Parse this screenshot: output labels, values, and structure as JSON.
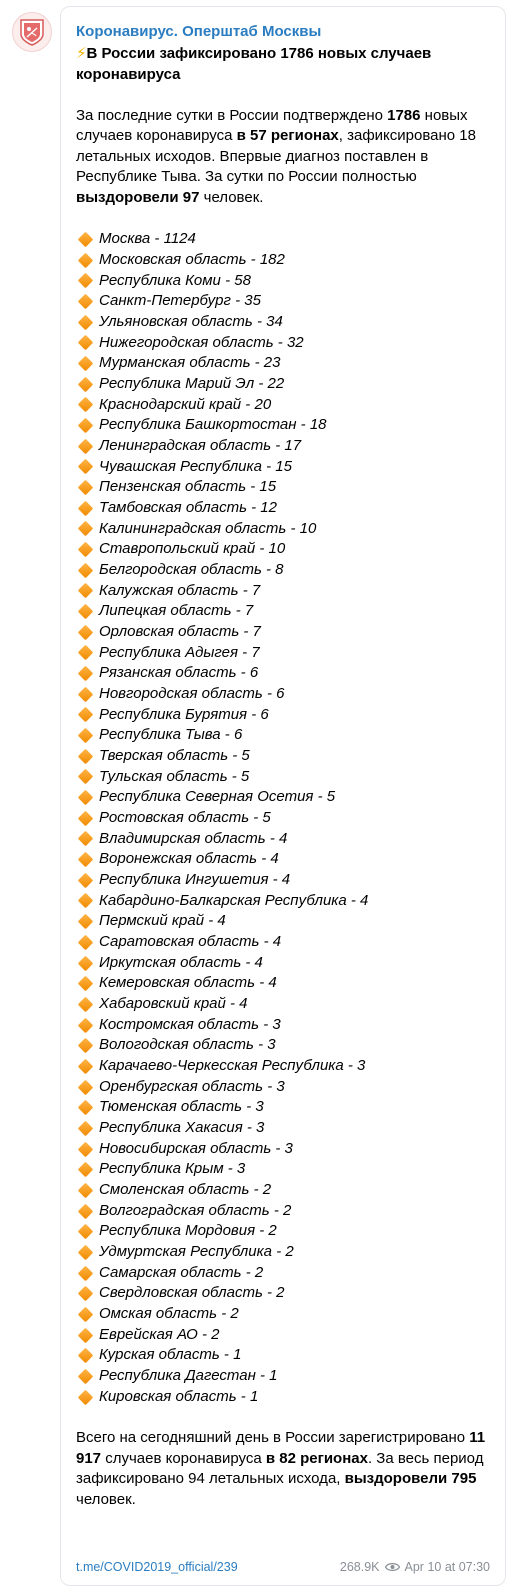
{
  "post": {
    "channel": "Коронавирус. Оперштаб Москвы",
    "headline": "В России зафиксировано 1786 новых случаев коронавируса",
    "intro": {
      "t1": "За последние сутки в России подтверждено ",
      "b1": "1786",
      "t2": " новых случаев коронавируса ",
      "b2": "в 57 регионах",
      "t3": ", зафиксировано 18 летальных исходов. Впервые диагноз поставлен в Республике Тыва. За сутки по России полностью ",
      "b3": "выздоровели 97",
      "t4": " человек."
    },
    "regions": [
      "Москва - 1124",
      "Московская область - 182",
      "Республика Коми - 58",
      "Санкт-Петербург - 35",
      "Ульяновская область - 34",
      "Нижегородская область - 32",
      "Мурманская область - 23",
      "Республика Марий Эл - 22",
      "Краснодарский край - 20",
      "Республика Башкортостан - 18",
      "Ленинградская область - 17",
      "Чувашская Республика - 15",
      "Пензенская область - 15",
      "Тамбовская область - 12",
      "Калининградская область - 10",
      "Ставропольский край - 10",
      "Белгородская область - 8",
      "Калужская область - 7",
      "Липецкая область - 7",
      "Орловская область - 7",
      "Республика Адыгея - 7",
      "Рязанская область - 6",
      "Новгородская область - 6",
      "Республика Бурятия - 6",
      "Республика Тыва - 6",
      "Тверская область - 5",
      "Тульская область - 5",
      "Республика Северная Осетия - 5",
      "Ростовская область - 5",
      "Владимирская область - 4",
      "Воронежская область - 4",
      "Республика Ингушетия - 4",
      "Кабардино-Балкарская Республика - 4",
      "Пермский край - 4",
      "Саратовская область - 4",
      "Иркутская область - 4",
      "Кемеровская область - 4",
      "Хабаровский край - 4",
      "Костромская область - 3",
      "Вологодская область - 3",
      "Карачаево-Черкесская Республика - 3",
      "Оренбургская область - 3",
      "Тюменская область - 3",
      "Республика Хакасия - 3",
      "Новосибирская область - 3",
      "Республика Крым - 3",
      "Смоленская область - 2",
      "Волгоградская область - 2",
      "Республика Мордовия - 2",
      "Удмуртская Республика - 2",
      "Самарская область - 2",
      "Свердловская область - 2",
      "Омская область - 2",
      "Еврейская АО - 2",
      "Курская область - 1",
      "Республика Дагестан - 1",
      "Кировская область - 1"
    ],
    "summary": {
      "t1": "Всего на сегодняшний день в России зарегистрировано ",
      "b1": "11 917",
      "t2": " случаев коронавируса ",
      "b2": "в 82 регионах",
      "t3": ". За весь период зафиксировано 94 летальных исхода, ",
      "b3": "выздоровели 795",
      "t4": " человек."
    },
    "footer": {
      "link": "t.me/COVID2019_official/239",
      "views": "268.9K",
      "date": "Apr 10 at 07:30"
    }
  },
  "colors": {
    "link": "#2a7dc1",
    "meta": "#8a8f96",
    "bullet": "#f59a1a"
  },
  "icons": {
    "avatar": "moscow-coat-of-arms-icon",
    "headline": "lightning-icon",
    "bullet": "orange-diamond-icon",
    "views": "eye-icon"
  }
}
